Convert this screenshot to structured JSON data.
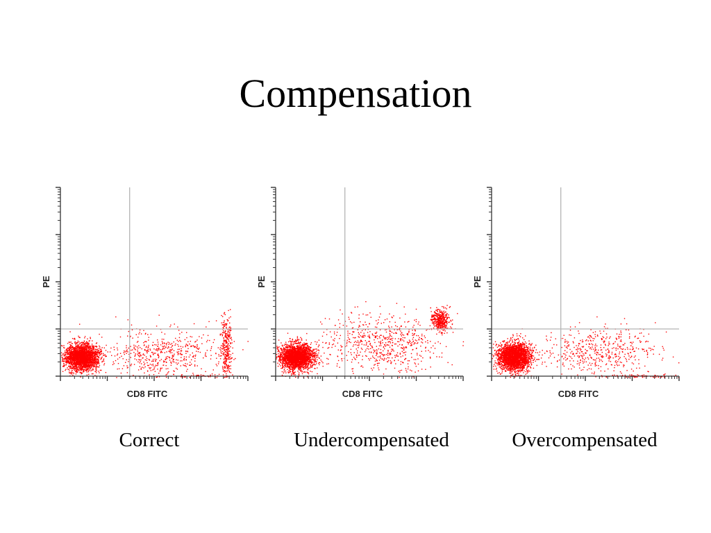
{
  "title": "Compensation",
  "colors": {
    "dots": "#ff0000",
    "axis": "#333333",
    "gate": "#b4b4b4"
  },
  "chart_data": [
    {
      "type": "scatter",
      "xlabel": "CD8 FITC",
      "ylabel": "PE",
      "xscale": "log",
      "yscale": "log",
      "xlim": [
        1,
        10000
      ],
      "ylim": [
        1,
        10000
      ],
      "caption": "Correct",
      "gate": {
        "x": 30,
        "y": 10
      },
      "clusters": [
        {
          "cx": 2.8,
          "cy": 2.6,
          "sx": 0.18,
          "sy": 0.14,
          "n": 2500
        },
        {
          "cx": 3400,
          "cy": 3.8,
          "sx": 0.06,
          "sy": 0.35,
          "n": 320
        },
        {
          "cx": 150,
          "cy": 3.0,
          "sx": 0.6,
          "sy": 0.25,
          "n": 550
        },
        {
          "cx": 1000,
          "cy": 1.0,
          "sx": 0.45,
          "sy": 0.02,
          "n": 60
        }
      ]
    },
    {
      "type": "scatter",
      "xlabel": "CD8 FITC",
      "ylabel": "PE",
      "xscale": "log",
      "yscale": "log",
      "xlim": [
        1,
        10000
      ],
      "ylim": [
        1,
        10000
      ],
      "caption": "Undercompensated",
      "gate": {
        "x": 30,
        "y": 10
      },
      "clusters": [
        {
          "cx": 2.8,
          "cy": 2.6,
          "sx": 0.18,
          "sy": 0.14,
          "n": 2500
        },
        {
          "cx": 3200,
          "cy": 16,
          "sx": 0.1,
          "sy": 0.12,
          "n": 420
        },
        {
          "cx": 200,
          "cy": 5.0,
          "sx": 0.6,
          "sy": 0.3,
          "n": 650
        }
      ]
    },
    {
      "type": "scatter",
      "xlabel": "CD8 FITC",
      "ylabel": "PE",
      "xscale": "log",
      "yscale": "log",
      "xlim": [
        1,
        10000
      ],
      "ylim": [
        1,
        10000
      ],
      "caption": "Overcompensated",
      "gate": {
        "x": 30,
        "y": 10
      },
      "clusters": [
        {
          "cx": 3.0,
          "cy": 2.6,
          "sx": 0.18,
          "sy": 0.15,
          "n": 2500
        },
        {
          "cx": 200,
          "cy": 3.4,
          "sx": 0.65,
          "sy": 0.25,
          "n": 500
        },
        {
          "cx": 1200,
          "cy": 1.0,
          "sx": 0.45,
          "sy": 0.02,
          "n": 90
        }
      ]
    }
  ]
}
